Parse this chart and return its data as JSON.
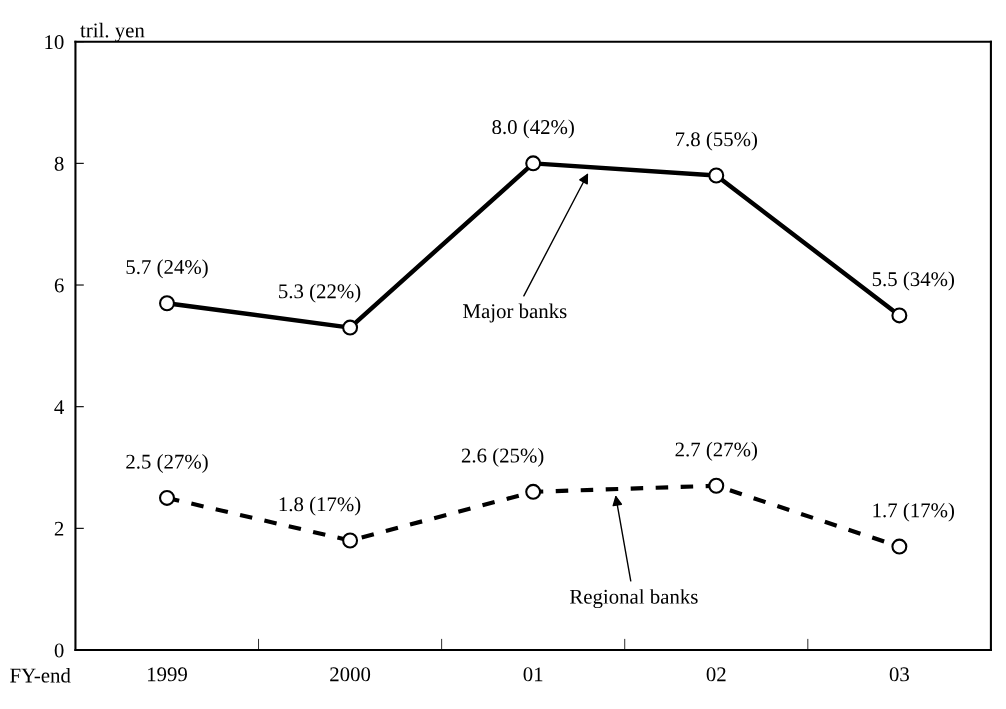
{
  "chart_data": {
    "type": "line",
    "xlabel": "FY-end",
    "ylabel": "tril. yen",
    "categories": [
      "1999",
      "2000",
      "01",
      "02",
      "03"
    ],
    "ylim": [
      0,
      10
    ],
    "yticks": [
      0,
      2,
      4,
      6,
      8,
      10
    ],
    "grid": false,
    "marker": "circle",
    "series": [
      {
        "name": "Major banks",
        "color": "#000000",
        "line_style": "solid",
        "values": [
          5.7,
          5.3,
          8.0,
          7.8,
          5.5
        ],
        "value_labels": [
          "5.7 (24%)",
          "5.3 (22%)",
          "8.0 (42%)",
          "7.8 (55%)",
          "5.5 (34%)"
        ]
      },
      {
        "name": "Regional banks",
        "color": "#000000",
        "line_style": "dashed",
        "values": [
          2.5,
          1.8,
          2.6,
          2.7,
          1.7
        ],
        "value_labels": [
          "2.5 (27%)",
          "1.8 (17%)",
          "2.6 (25%)",
          "2.7 (27%)",
          "1.7 (17%)"
        ]
      }
    ]
  }
}
